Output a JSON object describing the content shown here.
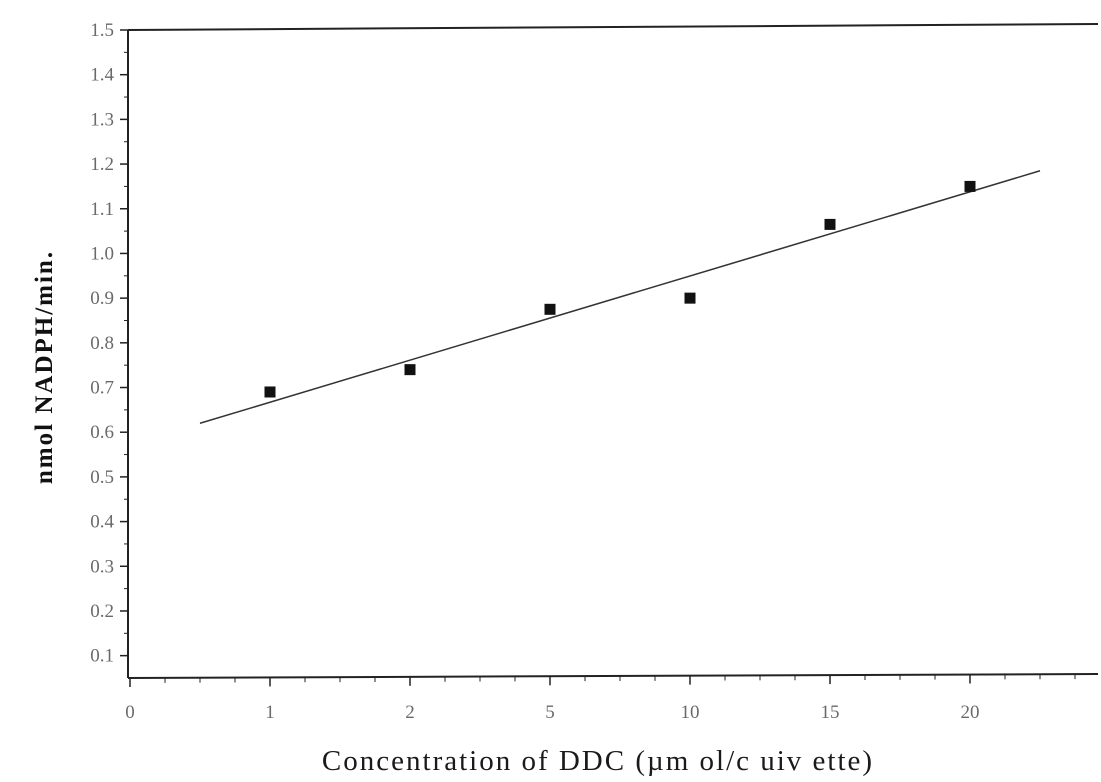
{
  "chart_data": {
    "type": "scatter",
    "title": "",
    "xlabel": "Concentration of DDC (µm ol/c uiv ette)",
    "ylabel": "nmol NADPH/min.",
    "x_tick_labels": [
      "0",
      "1",
      "2",
      "5",
      "10",
      "15",
      "20"
    ],
    "y_tick_labels": [
      "0.1",
      "0.2",
      "0.3",
      "0.4",
      "0.5",
      "0.6",
      "0.7",
      "0.8",
      "0.9",
      "1.0",
      "1.1",
      "1.2",
      "1.3",
      "1.4",
      "1.5"
    ],
    "ylim": [
      0.05,
      1.5
    ],
    "grid": false,
    "legend": "none",
    "series": [
      {
        "x": [
          "1",
          "2",
          "5",
          "10",
          "15",
          "20"
        ],
        "y": [
          0.69,
          0.74,
          0.875,
          0.9,
          1.065,
          1.15
        ]
      }
    ],
    "trendline": {
      "type": "linear",
      "y_at_start": 0.62,
      "y_at_end": 1.185
    },
    "colors": {
      "marker": "#111111",
      "line": "#333333",
      "axis": "#222222"
    }
  }
}
